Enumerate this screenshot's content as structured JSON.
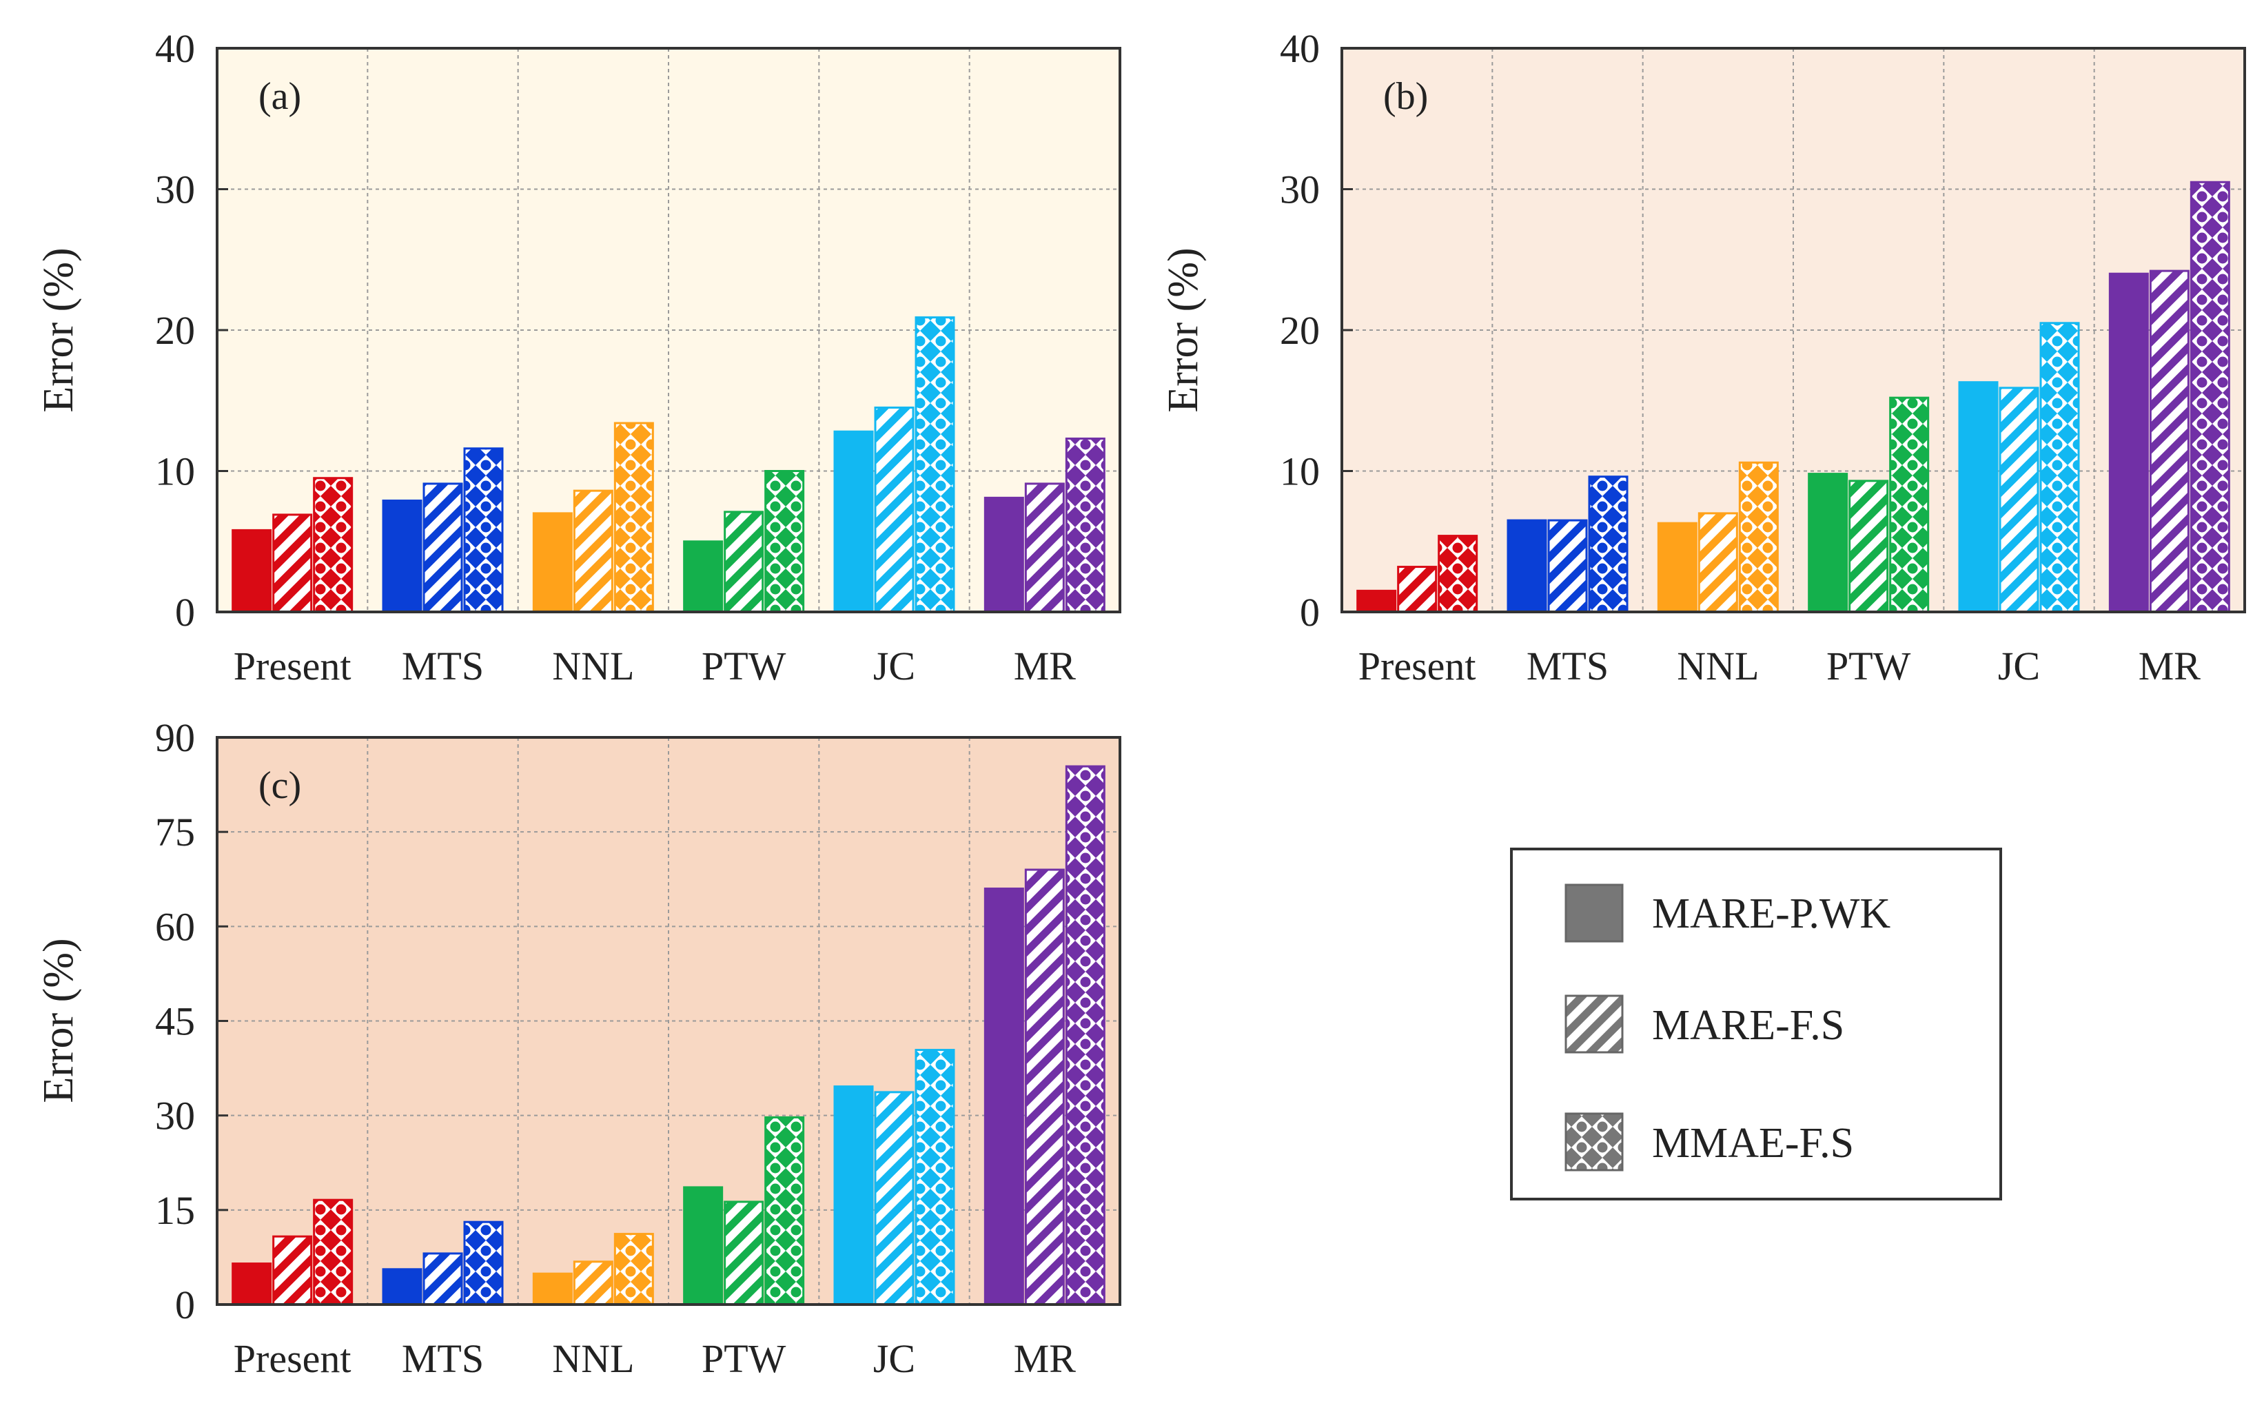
{
  "figure": {
    "legend": {
      "entries": [
        {
          "label": "MARE-P.WK",
          "pattern": "solid"
        },
        {
          "label": "MARE-F.S",
          "pattern": "hatch"
        },
        {
          "label": "MMAE-F.S",
          "pattern": "dots"
        }
      ]
    },
    "model_colors": {
      "Present": "#d90a14",
      "MTS": "#0a3fd6",
      "NNL": "#ffa21a",
      "PTW": "#14b04c",
      "JC": "#12b8f2",
      "MR": "#7130a6"
    },
    "panel_backgrounds": [
      "#fff8e8",
      "#fbebdf",
      "#f8d8c3"
    ],
    "legend_swatch_color": "#777777"
  },
  "chart_data": [
    {
      "type": "bar",
      "panel_label": "(a)",
      "ylabel": "Error (%)",
      "xlabel": "",
      "ylim": [
        0,
        40
      ],
      "yticks": [
        0,
        10,
        20,
        30,
        40
      ],
      "categories": [
        "Present",
        "MTS",
        "NNL",
        "PTW",
        "JC",
        "MR"
      ],
      "series": [
        {
          "name": "MARE-P.WK",
          "values": [
            5.8,
            7.9,
            7.0,
            5.0,
            12.8,
            8.1
          ]
        },
        {
          "name": "MARE-F.S",
          "values": [
            6.9,
            9.1,
            8.6,
            7.1,
            14.5,
            9.1
          ]
        },
        {
          "name": "MMAE-F.S",
          "values": [
            9.5,
            11.6,
            13.4,
            10.0,
            20.9,
            12.3
          ]
        }
      ],
      "grid": true
    },
    {
      "type": "bar",
      "panel_label": "(b)",
      "ylabel": "Error (%)",
      "xlabel": "",
      "ylim": [
        0,
        40
      ],
      "yticks": [
        0,
        10,
        20,
        30,
        40
      ],
      "categories": [
        "Present",
        "MTS",
        "NNL",
        "PTW",
        "JC",
        "MR"
      ],
      "series": [
        {
          "name": "MARE-P.WK",
          "values": [
            1.5,
            6.5,
            6.3,
            9.8,
            16.3,
            24.0
          ]
        },
        {
          "name": "MARE-F.S",
          "values": [
            3.2,
            6.5,
            7.0,
            9.3,
            15.9,
            24.2
          ]
        },
        {
          "name": "MMAE-F.S",
          "values": [
            5.4,
            9.6,
            10.6,
            15.2,
            20.5,
            30.5
          ]
        }
      ],
      "grid": true
    },
    {
      "type": "bar",
      "panel_label": "(c)",
      "ylabel": "Error (%)",
      "xlabel": "",
      "ylim": [
        0,
        90
      ],
      "yticks": [
        0,
        15,
        30,
        45,
        60,
        75,
        90
      ],
      "categories": [
        "Present",
        "MTS",
        "NNL",
        "PTW",
        "JC",
        "MR"
      ],
      "series": [
        {
          "name": "MARE-P.WK",
          "values": [
            6.5,
            5.6,
            4.9,
            18.6,
            34.6,
            66.0
          ]
        },
        {
          "name": "MARE-F.S",
          "values": [
            10.8,
            8.1,
            6.8,
            16.3,
            33.7,
            69.0
          ]
        },
        {
          "name": "MMAE-F.S",
          "values": [
            16.6,
            13.1,
            11.2,
            29.7,
            40.4,
            85.4
          ]
        }
      ],
      "grid": true
    }
  ]
}
